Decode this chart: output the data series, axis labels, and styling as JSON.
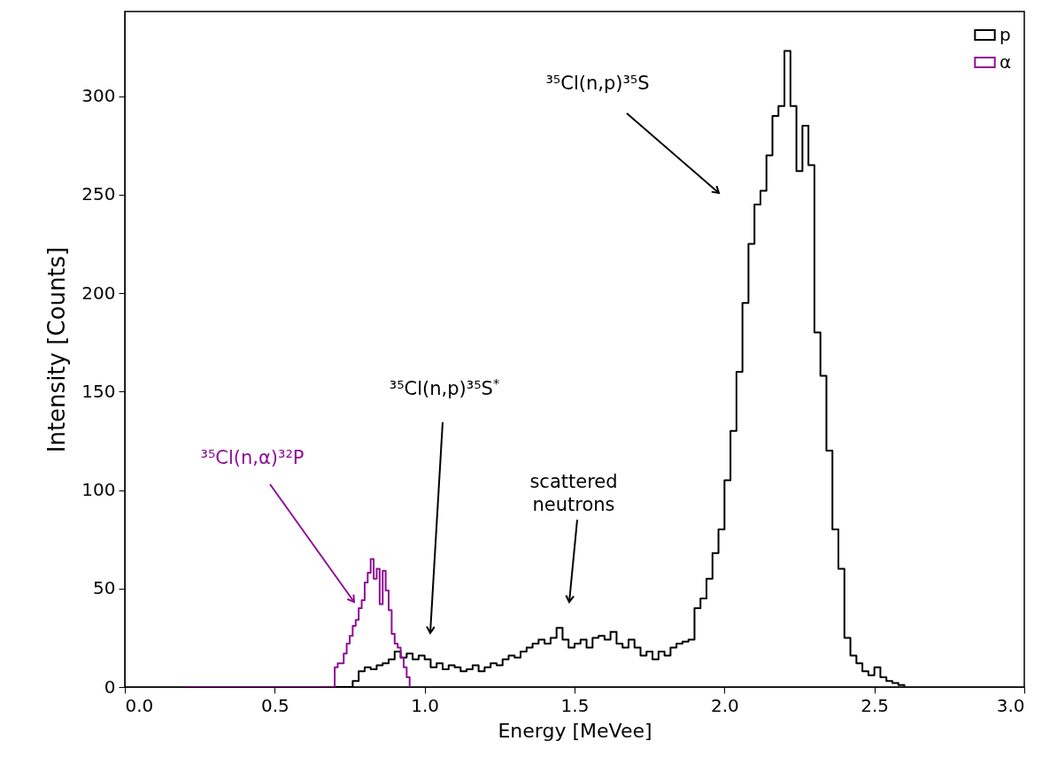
{
  "chart_data": {
    "type": "step",
    "xlabel": "Energy [MeVee]",
    "ylabel": "Intensity [Counts]",
    "xlim": [
      0,
      3
    ],
    "xticks": [
      {
        "value": 0,
        "label": "0.0"
      },
      {
        "value": 0.5,
        "label": "0.5"
      },
      {
        "value": 1,
        "label": "1.0"
      },
      {
        "value": 1.5,
        "label": "1.5"
      },
      {
        "value": 2,
        "label": "2.0"
      },
      {
        "value": 2.5,
        "label": "2.5"
      },
      {
        "value": 3,
        "label": "3.0"
      }
    ],
    "ylim": [
      0,
      343
    ],
    "yticks": [
      0,
      50,
      100,
      150,
      200,
      250,
      300
    ],
    "legend": "top right",
    "series": [
      {
        "name": "p",
        "color": "#000000",
        "x": [
          0.2,
          0.76,
          0.78,
          0.8,
          0.82,
          0.84,
          0.86,
          0.88,
          0.9,
          0.92,
          0.94,
          0.96,
          0.98,
          1,
          1.02,
          1.04,
          1.06,
          1.08,
          1.1,
          1.12,
          1.14,
          1.16,
          1.18,
          1.2,
          1.22,
          1.24,
          1.26,
          1.28,
          1.3,
          1.32,
          1.34,
          1.36,
          1.38,
          1.4,
          1.42,
          1.44,
          1.46,
          1.48,
          1.5,
          1.52,
          1.54,
          1.56,
          1.58,
          1.6,
          1.62,
          1.64,
          1.66,
          1.68,
          1.7,
          1.72,
          1.74,
          1.76,
          1.78,
          1.8,
          1.82,
          1.84,
          1.86,
          1.88,
          1.9,
          1.92,
          1.94,
          1.96,
          1.98,
          2,
          2.02,
          2.04,
          2.06,
          2.08,
          2.1,
          2.12,
          2.14,
          2.16,
          2.18,
          2.2,
          2.22,
          2.24,
          2.26,
          2.28,
          2.3,
          2.32,
          2.34,
          2.36,
          2.38,
          2.4,
          2.42,
          2.44,
          2.46,
          2.48,
          2.5,
          2.52,
          2.54,
          2.56,
          2.58,
          2.6
        ],
        "values": [
          0,
          3,
          8,
          10,
          9,
          11,
          12,
          14,
          18,
          15,
          17,
          14,
          16,
          14,
          10,
          12,
          9,
          11,
          10,
          8,
          9,
          11,
          8,
          10,
          12,
          11,
          14,
          16,
          15,
          18,
          20,
          22,
          24,
          22,
          25,
          30,
          24,
          20,
          22,
          24,
          20,
          25,
          26,
          24,
          28,
          22,
          20,
          24,
          20,
          16,
          18,
          14,
          18,
          16,
          20,
          22,
          23,
          24,
          40,
          45,
          55,
          68,
          80,
          105,
          130,
          160,
          195,
          225,
          245,
          252,
          270,
          290,
          295,
          323,
          295,
          262,
          285,
          265,
          180,
          158,
          120,
          80,
          60,
          25,
          16,
          12,
          8,
          6,
          10,
          5,
          3,
          2,
          1,
          0
        ]
      },
      {
        "name": "α",
        "color": "#8e0f94",
        "x": [
          0.2,
          0.7,
          0.71,
          0.72,
          0.73,
          0.74,
          0.75,
          0.76,
          0.77,
          0.78,
          0.79,
          0.8,
          0.81,
          0.82,
          0.83,
          0.84,
          0.85,
          0.86,
          0.87,
          0.88,
          0.89,
          0.9,
          0.91,
          0.92,
          0.93,
          0.94,
          0.95
        ],
        "values": [
          0,
          10,
          12,
          12,
          17,
          22,
          26,
          31,
          34,
          40,
          44,
          53,
          58,
          65,
          55,
          60,
          42,
          59,
          49,
          39,
          27,
          22,
          20,
          15,
          10,
          5,
          0
        ]
      }
    ],
    "annotations": [
      "³⁵Cl(n,p)³⁵S",
      "³⁵Cl(n,p)³⁵S$^{*}$",
      "scattered\nneutrons",
      "³⁵Cl(n,α)³²P"
    ]
  }
}
